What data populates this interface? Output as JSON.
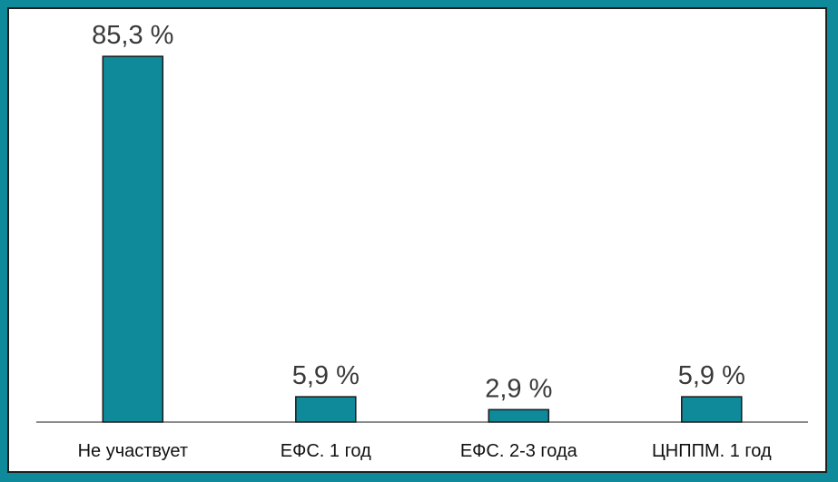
{
  "chart_data": {
    "type": "bar",
    "categories": [
      "Не участвует",
      "ЕФС. 1 год",
      "ЕФС. 2-3 года",
      "ЦНППМ. 1 год"
    ],
    "values": [
      85.3,
      5.9,
      2.9,
      5.9
    ],
    "value_labels": [
      "85,3 %",
      "5,9 %",
      "2,9 %",
      "5,9 %"
    ],
    "unit": "%",
    "bar_color": "#0e8a9a",
    "bar_edge_color": "#1a1a1a",
    "background_color": "#0e8a9a",
    "grid": false,
    "legend": "none"
  }
}
